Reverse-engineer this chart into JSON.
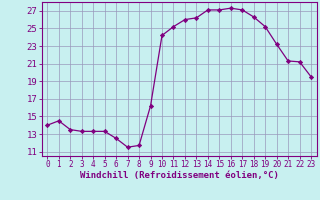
{
  "x": [
    0,
    1,
    2,
    3,
    4,
    5,
    6,
    7,
    8,
    9,
    10,
    11,
    12,
    13,
    14,
    15,
    16,
    17,
    18,
    19,
    20,
    21,
    22,
    23
  ],
  "y": [
    14.0,
    14.5,
    13.5,
    13.3,
    13.3,
    13.3,
    12.5,
    11.5,
    11.7,
    16.2,
    24.2,
    25.2,
    26.0,
    26.2,
    27.1,
    27.1,
    27.3,
    27.1,
    26.3,
    25.2,
    23.2,
    21.3,
    21.2,
    19.5
  ],
  "line_color": "#800080",
  "marker": "D",
  "marker_size": 2.2,
  "bg_color": "#c8f0f0",
  "grid_color": "#9999bb",
  "xlabel": "Windchill (Refroidissement éolien,°C)",
  "xlim": [
    -0.5,
    23.5
  ],
  "ylim": [
    10.5,
    28
  ],
  "yticks": [
    11,
    13,
    15,
    17,
    19,
    21,
    23,
    25,
    27
  ],
  "xticks": [
    0,
    1,
    2,
    3,
    4,
    5,
    6,
    7,
    8,
    9,
    10,
    11,
    12,
    13,
    14,
    15,
    16,
    17,
    18,
    19,
    20,
    21,
    22,
    23
  ],
  "tick_color": "#800080",
  "xlabel_fontsize": 6.5,
  "ytick_fontsize": 6.5,
  "xtick_fontsize": 5.5
}
